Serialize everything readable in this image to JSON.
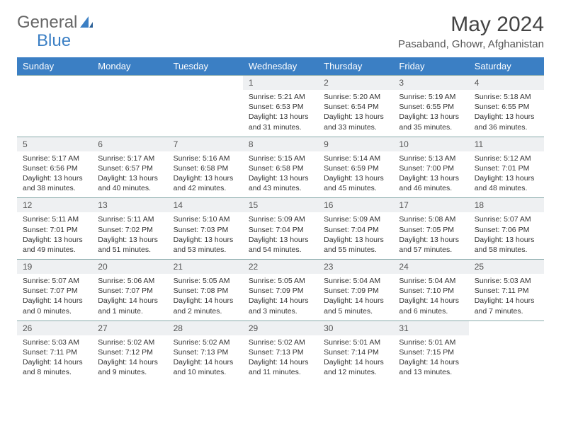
{
  "logo": {
    "text1": "General",
    "text2": "Blue"
  },
  "title": "May 2024",
  "location": "Pasaband, Ghowr, Afghanistan",
  "colors": {
    "header_bg": "#3b7fc4",
    "header_text": "#ffffff",
    "daynum_bg": "#eef0f2",
    "border": "#7fa8b8",
    "page_bg": "#ffffff"
  },
  "day_headers": [
    "Sunday",
    "Monday",
    "Tuesday",
    "Wednesday",
    "Thursday",
    "Friday",
    "Saturday"
  ],
  "weeks": [
    [
      null,
      null,
      null,
      {
        "n": "1",
        "sr": "5:21 AM",
        "ss": "6:53 PM",
        "dl": "13 hours and 31 minutes."
      },
      {
        "n": "2",
        "sr": "5:20 AM",
        "ss": "6:54 PM",
        "dl": "13 hours and 33 minutes."
      },
      {
        "n": "3",
        "sr": "5:19 AM",
        "ss": "6:55 PM",
        "dl": "13 hours and 35 minutes."
      },
      {
        "n": "4",
        "sr": "5:18 AM",
        "ss": "6:55 PM",
        "dl": "13 hours and 36 minutes."
      }
    ],
    [
      {
        "n": "5",
        "sr": "5:17 AM",
        "ss": "6:56 PM",
        "dl": "13 hours and 38 minutes."
      },
      {
        "n": "6",
        "sr": "5:17 AM",
        "ss": "6:57 PM",
        "dl": "13 hours and 40 minutes."
      },
      {
        "n": "7",
        "sr": "5:16 AM",
        "ss": "6:58 PM",
        "dl": "13 hours and 42 minutes."
      },
      {
        "n": "8",
        "sr": "5:15 AM",
        "ss": "6:58 PM",
        "dl": "13 hours and 43 minutes."
      },
      {
        "n": "9",
        "sr": "5:14 AM",
        "ss": "6:59 PM",
        "dl": "13 hours and 45 minutes."
      },
      {
        "n": "10",
        "sr": "5:13 AM",
        "ss": "7:00 PM",
        "dl": "13 hours and 46 minutes."
      },
      {
        "n": "11",
        "sr": "5:12 AM",
        "ss": "7:01 PM",
        "dl": "13 hours and 48 minutes."
      }
    ],
    [
      {
        "n": "12",
        "sr": "5:11 AM",
        "ss": "7:01 PM",
        "dl": "13 hours and 49 minutes."
      },
      {
        "n": "13",
        "sr": "5:11 AM",
        "ss": "7:02 PM",
        "dl": "13 hours and 51 minutes."
      },
      {
        "n": "14",
        "sr": "5:10 AM",
        "ss": "7:03 PM",
        "dl": "13 hours and 53 minutes."
      },
      {
        "n": "15",
        "sr": "5:09 AM",
        "ss": "7:04 PM",
        "dl": "13 hours and 54 minutes."
      },
      {
        "n": "16",
        "sr": "5:09 AM",
        "ss": "7:04 PM",
        "dl": "13 hours and 55 minutes."
      },
      {
        "n": "17",
        "sr": "5:08 AM",
        "ss": "7:05 PM",
        "dl": "13 hours and 57 minutes."
      },
      {
        "n": "18",
        "sr": "5:07 AM",
        "ss": "7:06 PM",
        "dl": "13 hours and 58 minutes."
      }
    ],
    [
      {
        "n": "19",
        "sr": "5:07 AM",
        "ss": "7:07 PM",
        "dl": "14 hours and 0 minutes."
      },
      {
        "n": "20",
        "sr": "5:06 AM",
        "ss": "7:07 PM",
        "dl": "14 hours and 1 minute."
      },
      {
        "n": "21",
        "sr": "5:05 AM",
        "ss": "7:08 PM",
        "dl": "14 hours and 2 minutes."
      },
      {
        "n": "22",
        "sr": "5:05 AM",
        "ss": "7:09 PM",
        "dl": "14 hours and 3 minutes."
      },
      {
        "n": "23",
        "sr": "5:04 AM",
        "ss": "7:09 PM",
        "dl": "14 hours and 5 minutes."
      },
      {
        "n": "24",
        "sr": "5:04 AM",
        "ss": "7:10 PM",
        "dl": "14 hours and 6 minutes."
      },
      {
        "n": "25",
        "sr": "5:03 AM",
        "ss": "7:11 PM",
        "dl": "14 hours and 7 minutes."
      }
    ],
    [
      {
        "n": "26",
        "sr": "5:03 AM",
        "ss": "7:11 PM",
        "dl": "14 hours and 8 minutes."
      },
      {
        "n": "27",
        "sr": "5:02 AM",
        "ss": "7:12 PM",
        "dl": "14 hours and 9 minutes."
      },
      {
        "n": "28",
        "sr": "5:02 AM",
        "ss": "7:13 PM",
        "dl": "14 hours and 10 minutes."
      },
      {
        "n": "29",
        "sr": "5:02 AM",
        "ss": "7:13 PM",
        "dl": "14 hours and 11 minutes."
      },
      {
        "n": "30",
        "sr": "5:01 AM",
        "ss": "7:14 PM",
        "dl": "14 hours and 12 minutes."
      },
      {
        "n": "31",
        "sr": "5:01 AM",
        "ss": "7:15 PM",
        "dl": "14 hours and 13 minutes."
      },
      null
    ]
  ],
  "labels": {
    "sunrise": "Sunrise: ",
    "sunset": "Sunset: ",
    "daylight": "Daylight: "
  }
}
